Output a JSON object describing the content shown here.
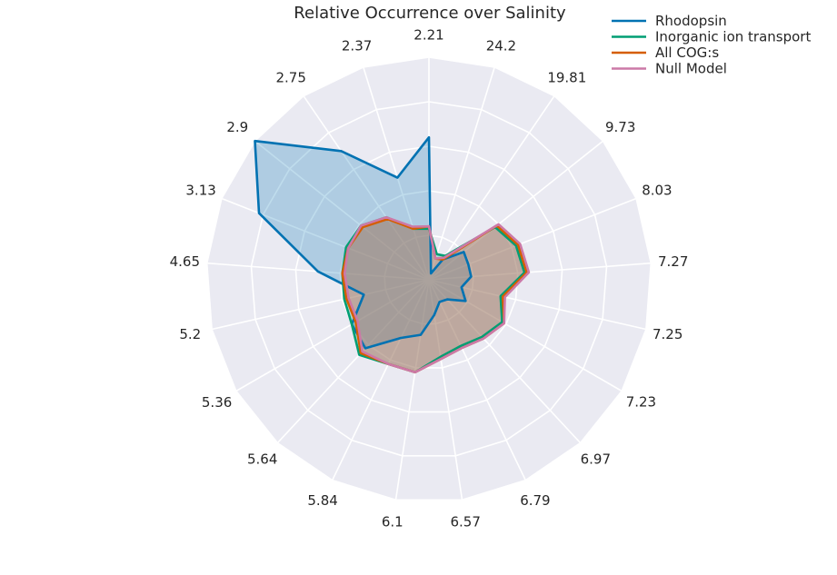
{
  "chart_data": {
    "type": "radar",
    "title": "Relative Occurrence over Salinity",
    "categories": [
      "2.21",
      "24.2",
      "19.81",
      "9.73",
      "8.03",
      "7.27",
      "7.25",
      "7.23",
      "6.97",
      "6.79",
      "6.57",
      "6.1",
      "5.84",
      "5.64",
      "5.36",
      "5.2",
      "4.65",
      "3.13",
      "2.9",
      "2.75",
      "2.37"
    ],
    "radial_range": [
      0,
      1
    ],
    "grid": true,
    "legend_position": "top-right",
    "series": [
      {
        "name": "Rhodopsin",
        "color": "#0072b2",
        "fill": true,
        "values": [
          0.64,
          0.03,
          0.11,
          0.2,
          0.19,
          0.19,
          0.15,
          0.19,
          0.12,
          0.11,
          0.16,
          0.25,
          0.29,
          0.42,
          0.4,
          0.3,
          0.5,
          0.82,
          1.0,
          0.7,
          0.48
        ]
      },
      {
        "name": "Inorganic ion transport",
        "color": "#009e73",
        "fill": true,
        "values": [
          0.23,
          0.12,
          0.13,
          0.38,
          0.42,
          0.43,
          0.33,
          0.38,
          0.35,
          0.33,
          0.35,
          0.42,
          0.42,
          0.46,
          0.4,
          0.39,
          0.39,
          0.4,
          0.39,
          0.34,
          0.24
        ]
      },
      {
        "name": "All COG:s",
        "color": "#d55e00",
        "fill": true,
        "values": [
          0.24,
          0.1,
          0.11,
          0.39,
          0.43,
          0.44,
          0.34,
          0.39,
          0.36,
          0.34,
          0.36,
          0.42,
          0.42,
          0.45,
          0.38,
          0.38,
          0.39,
          0.39,
          0.38,
          0.33,
          0.24
        ]
      },
      {
        "name": "Null Model",
        "color": "#cc79a7",
        "fill": true,
        "values": [
          0.24,
          0.1,
          0.12,
          0.4,
          0.44,
          0.45,
          0.35,
          0.39,
          0.36,
          0.34,
          0.36,
          0.42,
          0.42,
          0.44,
          0.37,
          0.37,
          0.38,
          0.39,
          0.39,
          0.34,
          0.25
        ]
      }
    ]
  }
}
